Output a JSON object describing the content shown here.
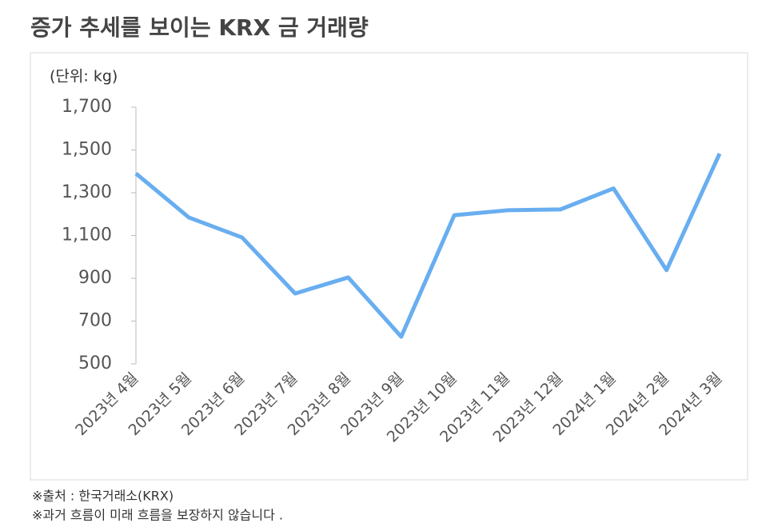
{
  "chart_data": {
    "type": "line",
    "title": "증가 추세를 보이는 KRX 금 거래량",
    "unit_label": "(단위: kg)",
    "categories": [
      "2023년 4월",
      "2023년 5월",
      "2023년 6월",
      "2023년 7월",
      "2023년 8월",
      "2023년 9월",
      "2023년 10월",
      "2023년 11월",
      "2023년 12월",
      "2024년 1월",
      "2024년 2월",
      "2024년 3월"
    ],
    "series": [
      {
        "name": "KRX 금 거래량",
        "color": "#68aef0",
        "values": [
          1390,
          1184,
          1091,
          829,
          904,
          627,
          1195,
          1218,
          1222,
          1320,
          938,
          1483
        ]
      }
    ],
    "ylim": [
      500,
      1700
    ],
    "yticks": [
      500,
      700,
      900,
      {
        "value": 1100,
        "label": "1,100"
      },
      {
        "value": 1300,
        "label": "1,300"
      },
      {
        "value": 1500,
        "label": "1,500"
      },
      {
        "value": 1700,
        "label": "1,700"
      }
    ],
    "grid": false,
    "notes": [
      "※출처 : 한국거래소(KRX)",
      "※과거 흐름이 미래 흐름을 보장하지 않습니다 ."
    ]
  }
}
